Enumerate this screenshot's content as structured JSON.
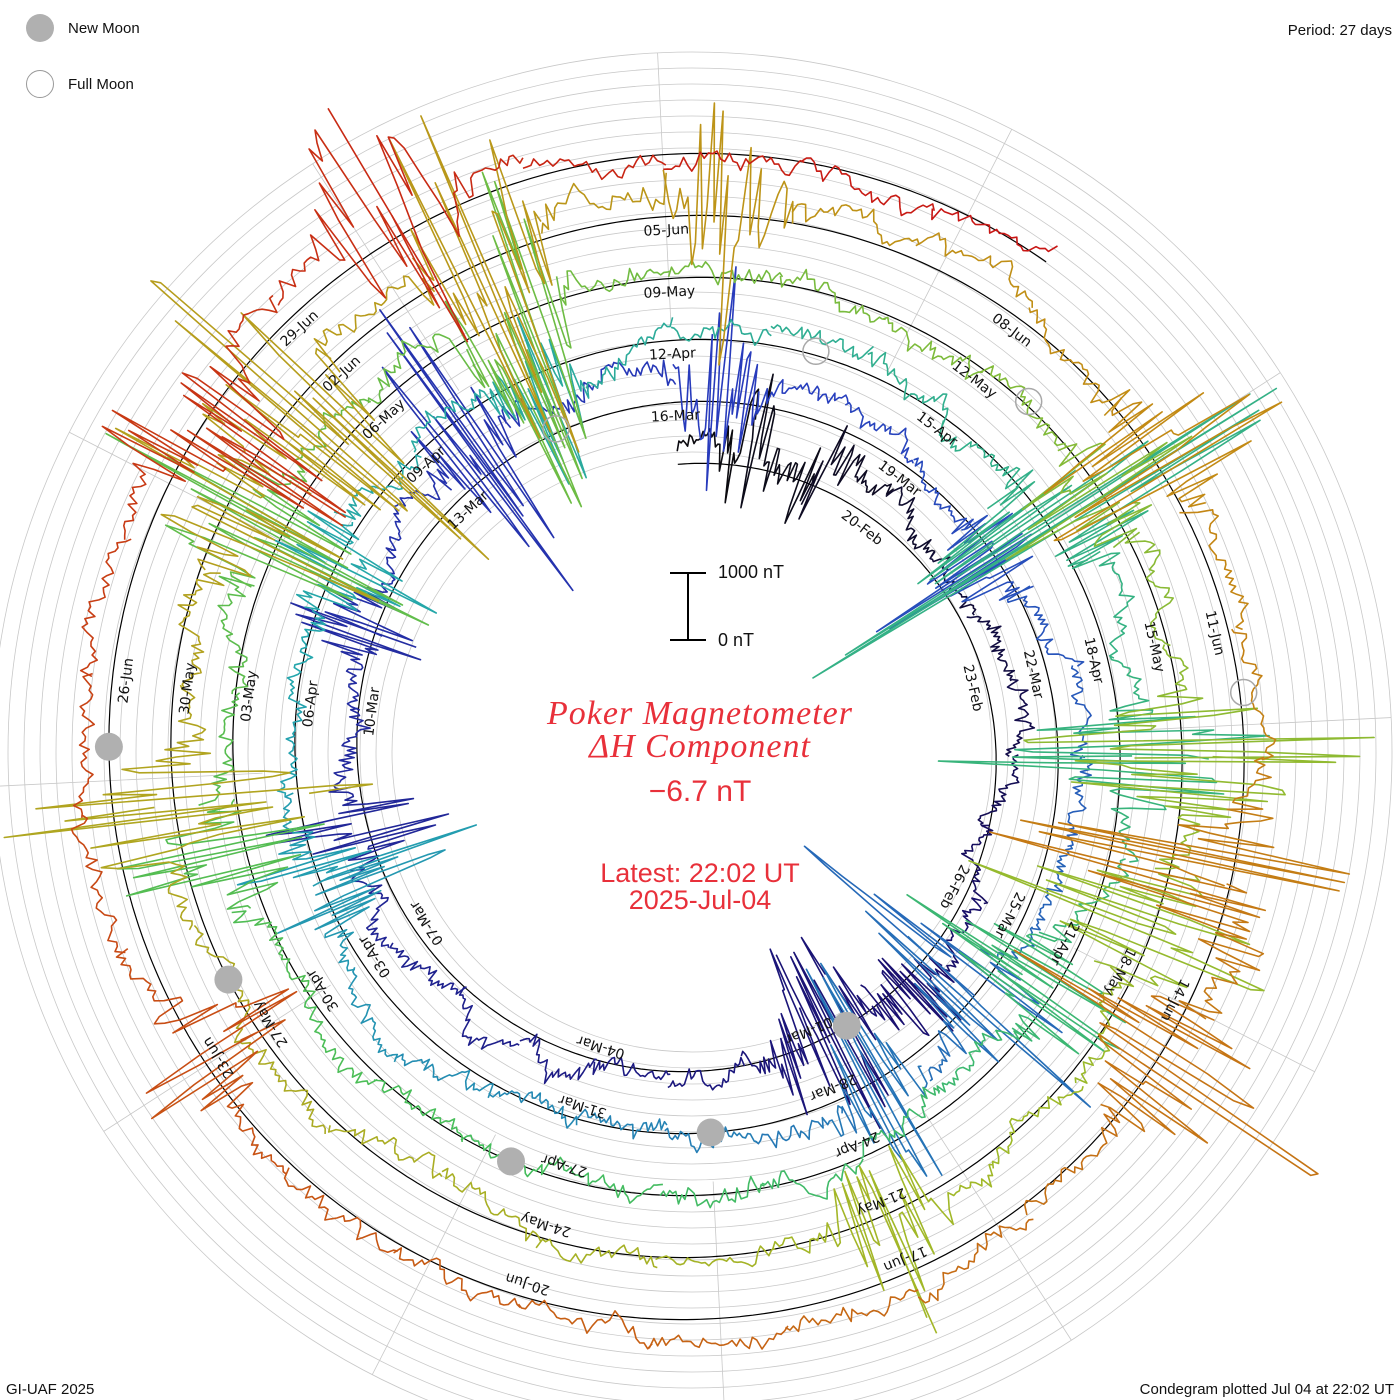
{
  "header": {
    "period": "Period: 27 days"
  },
  "legend": [
    {
      "label": "New Moon",
      "symbol": "filled-gray-circle"
    },
    {
      "label": "Full Moon",
      "symbol": "open-gray-circle"
    }
  ],
  "center": {
    "title_line1": "Poker Magnetometer",
    "title_line2": "ΔH Component",
    "current_value": "−6.7 nT",
    "latest_line1": "Latest: 22:02 UT",
    "latest_line2": "2025-Jul-04"
  },
  "scale_bar": {
    "top_label": "1000 nT",
    "bottom_label": "0 nT"
  },
  "footer": {
    "credit": "GI-UAF 2025",
    "plotted": "Condegram plotted Jul 04 at 22:02 UT"
  },
  "colors": {
    "title": "#e8303a",
    "grid": "#c8c8c8",
    "baseline": "#000000",
    "moon_marker": "#b0b0b0"
  },
  "chart_data": {
    "type": "line",
    "subtype": "polar-condegram",
    "period_days": 27,
    "start_date": "2025-02-17",
    "end_date": "2025-07-04",
    "rotation": "clockwise",
    "date_labels": [
      {
        "label": "20-Feb",
        "day": 3
      },
      {
        "label": "23-Feb",
        "day": 6
      },
      {
        "label": "26-Feb",
        "day": 9
      },
      {
        "label": "01-Mar",
        "day": 12
      },
      {
        "label": "04-Mar",
        "day": 15
      },
      {
        "label": "07-Mar",
        "day": 18
      },
      {
        "label": "10-Mar",
        "day": 21
      },
      {
        "label": "13-Mar",
        "day": 24
      },
      {
        "label": "16-Mar",
        "day": 27
      },
      {
        "label": "19-Mar",
        "day": 30
      },
      {
        "label": "22-Mar",
        "day": 33
      },
      {
        "label": "25-Mar",
        "day": 36
      },
      {
        "label": "28-Mar",
        "day": 39
      },
      {
        "label": "31-Mar",
        "day": 42
      },
      {
        "label": "03-Apr",
        "day": 45
      },
      {
        "label": "06-Apr",
        "day": 48
      },
      {
        "label": "09-Apr",
        "day": 51
      },
      {
        "label": "12-Apr",
        "day": 54
      },
      {
        "label": "15-Apr",
        "day": 57
      },
      {
        "label": "18-Apr",
        "day": 60
      },
      {
        "label": "21-Apr",
        "day": 63
      },
      {
        "label": "24-Apr",
        "day": 66
      },
      {
        "label": "27-Apr",
        "day": 69
      },
      {
        "label": "30-Apr",
        "day": 72
      },
      {
        "label": "03-May",
        "day": 75
      },
      {
        "label": "06-May",
        "day": 78
      },
      {
        "label": "09-May",
        "day": 81
      },
      {
        "label": "12-May",
        "day": 84
      },
      {
        "label": "15-May",
        "day": 87
      },
      {
        "label": "18-May",
        "day": 90
      },
      {
        "label": "21-May",
        "day": 93
      },
      {
        "label": "24-May",
        "day": 96
      },
      {
        "label": "27-May",
        "day": 99
      },
      {
        "label": "30-May",
        "day": 102
      },
      {
        "label": "02-Jun",
        "day": 105
      },
      {
        "label": "05-Jun",
        "day": 108
      },
      {
        "label": "08-Jun",
        "day": 111
      },
      {
        "label": "11-Jun",
        "day": 114
      },
      {
        "label": "14-Jun",
        "day": 117
      },
      {
        "label": "17-Jun",
        "day": 120
      },
      {
        "label": "20-Jun",
        "day": 123
      },
      {
        "label": "23-Jun",
        "day": 126
      },
      {
        "label": "26-Jun",
        "day": 129
      },
      {
        "label": "29-Jun",
        "day": 132
      }
    ],
    "new_moons": [
      "2025-02-28",
      "2025-03-29",
      "2025-04-27",
      "2025-05-27",
      "2025-06-25"
    ],
    "full_moons": [
      "2025-03-14",
      "2025-04-13",
      "2025-05-12",
      "2025-06-11"
    ],
    "disturbances": [
      {
        "day": 1.0,
        "amp": 260
      },
      {
        "day": 2.0,
        "amp": 120
      },
      {
        "day": 10.5,
        "amp": 150
      },
      {
        "day": 11.5,
        "amp": 300
      },
      {
        "day": 12.2,
        "amp": 200
      },
      {
        "day": 19.5,
        "amp": 220
      },
      {
        "day": 22.0,
        "amp": 180
      },
      {
        "day": 24.5,
        "amp": 420
      },
      {
        "day": 27.5,
        "amp": 350
      },
      {
        "day": 31.5,
        "amp": 250
      },
      {
        "day": 37.0,
        "amp": 420
      },
      {
        "day": 38.5,
        "amp": 330
      },
      {
        "day": 46.0,
        "amp": 350
      },
      {
        "day": 49.5,
        "amp": 300
      },
      {
        "day": 52.5,
        "amp": 250
      },
      {
        "day": 58.5,
        "amp": 700
      },
      {
        "day": 61.0,
        "amp": 450
      },
      {
        "day": 63.5,
        "amp": 300
      },
      {
        "day": 73.5,
        "amp": 250
      },
      {
        "day": 76.5,
        "amp": 500
      },
      {
        "day": 79.5,
        "amp": 650
      },
      {
        "day": 85.5,
        "amp": 250
      },
      {
        "day": 88.0,
        "amp": 550
      },
      {
        "day": 89.5,
        "amp": 450
      },
      {
        "day": 93.0,
        "amp": 300
      },
      {
        "day": 101.0,
        "amp": 450
      },
      {
        "day": 103.5,
        "amp": 400
      },
      {
        "day": 104.5,
        "amp": 700
      },
      {
        "day": 106.5,
        "amp": 600
      },
      {
        "day": 108.5,
        "amp": 300
      },
      {
        "day": 112.5,
        "amp": 400
      },
      {
        "day": 116.0,
        "amp": 550
      },
      {
        "day": 117.5,
        "amp": 450
      },
      {
        "day": 126.0,
        "amp": 250
      },
      {
        "day": 131.0,
        "amp": 400
      },
      {
        "day": 133.0,
        "amp": 350
      }
    ]
  }
}
